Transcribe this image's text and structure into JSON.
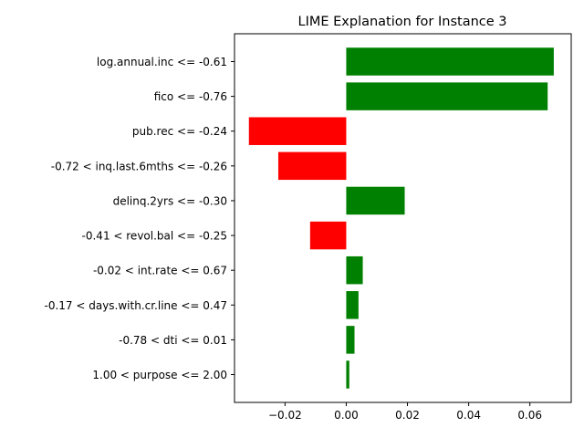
{
  "chart_data": {
    "type": "bar",
    "orientation": "horizontal",
    "title": "LIME Explanation for Instance 3",
    "xlabel": "",
    "ylabel": "",
    "categories": [
      "log.annual.inc <= -0.61",
      "fico <= -0.76",
      "pub.rec <= -0.24",
      "-0.72 < inq.last.6mths <= -0.26",
      "delinq.2yrs <= -0.30",
      "-0.41 < revol.bal <= -0.25",
      "-0.02 < int.rate <= 0.67",
      "-0.17 < days.with.cr.line <= 0.47",
      "-0.78 < dti <= 0.01",
      "1.00 < purpose <= 2.00"
    ],
    "values": [
      0.0678,
      0.0658,
      -0.0318,
      -0.0222,
      0.0191,
      -0.0118,
      0.0054,
      0.004,
      0.0027,
      0.001
    ],
    "xlim": [
      -0.0365,
      0.0735
    ],
    "xticks": [
      -0.02,
      0.0,
      0.02,
      0.04,
      0.06
    ],
    "xtick_labels": [
      "−0.02",
      "0.00",
      "0.02",
      "0.04",
      "0.06"
    ],
    "colors": {
      "positive": "#008000",
      "negative": "#ff0000"
    },
    "grid": false,
    "legend": "none"
  }
}
